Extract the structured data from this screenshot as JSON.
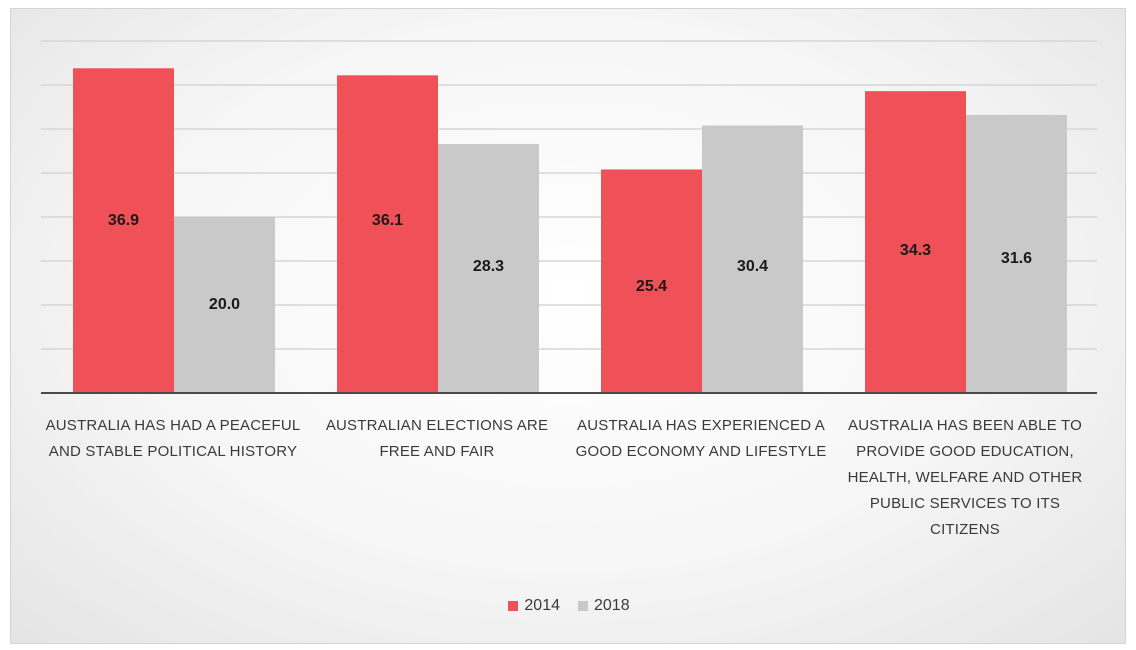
{
  "chart_data": {
    "type": "bar",
    "categories": [
      "AUSTRALIA HAS HAD A PEACEFUL AND STABLE POLITICAL HISTORY",
      "AUSTRALIAN ELECTIONS ARE FREE AND FAIR",
      "AUSTRALIA HAS EXPERIENCED A GOOD ECONOMY AND LIFESTYLE",
      "AUSTRALIA HAS BEEN ABLE TO PROVIDE GOOD EDUCATION, HEALTH, WELFARE AND OTHER PUBLIC SERVICES TO ITS CITIZENS"
    ],
    "series": [
      {
        "name": "2014",
        "values": [
          36.9,
          36.1,
          25.4,
          34.3
        ],
        "labels": [
          "36.9",
          "36.1",
          "25.4",
          "34.3"
        ],
        "color": "#f05057"
      },
      {
        "name": "2018",
        "values": [
          20.0,
          28.3,
          30.4,
          31.6
        ],
        "labels": [
          "20.0",
          "28.3",
          "30.4",
          "31.6"
        ],
        "color": "#c9c9c9"
      }
    ],
    "ylim": [
      0,
      40
    ],
    "grid": true,
    "legend_position": "bottom"
  }
}
